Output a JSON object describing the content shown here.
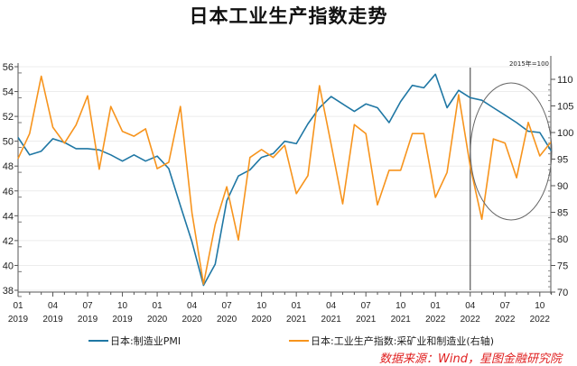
{
  "title": "日本工业生产指数走势",
  "source": "数据来源：Wind，星图金融研究院",
  "chart_data": {
    "type": "line",
    "title": "日本工业生产指数走势",
    "xlabel": "",
    "ylabel_left": "",
    "ylabel_right": "2015年=100",
    "left_axis": {
      "ylim": [
        38,
        56
      ],
      "ticks": [
        38,
        40,
        42,
        44,
        46,
        48,
        50,
        52,
        54,
        56
      ]
    },
    "right_axis": {
      "ylim": [
        70,
        110
      ],
      "ticks": [
        70,
        75,
        80,
        85,
        90,
        95,
        100,
        105,
        110
      ],
      "unit_label": "2015年=100"
    },
    "x_tick_labels": [
      {
        "m": "01",
        "y": "2019"
      },
      {
        "m": "04",
        "y": "2019"
      },
      {
        "m": "07",
        "y": "2019"
      },
      {
        "m": "10",
        "y": "2019"
      },
      {
        "m": "01",
        "y": "2020"
      },
      {
        "m": "04",
        "y": "2020"
      },
      {
        "m": "07",
        "y": "2020"
      },
      {
        "m": "10",
        "y": "2020"
      },
      {
        "m": "01",
        "y": "2021"
      },
      {
        "m": "04",
        "y": "2021"
      },
      {
        "m": "07",
        "y": "2021"
      },
      {
        "m": "10",
        "y": "2021"
      },
      {
        "m": "01",
        "y": "2022"
      },
      {
        "m": "04",
        "y": "2022"
      },
      {
        "m": "07",
        "y": "2022"
      },
      {
        "m": "10",
        "y": "2022"
      }
    ],
    "x": [
      "2019-01",
      "2019-02",
      "2019-03",
      "2019-04",
      "2019-05",
      "2019-06",
      "2019-07",
      "2019-08",
      "2019-09",
      "2019-10",
      "2019-11",
      "2019-12",
      "2020-01",
      "2020-02",
      "2020-03",
      "2020-04",
      "2020-05",
      "2020-06",
      "2020-07",
      "2020-08",
      "2020-09",
      "2020-10",
      "2020-11",
      "2020-12",
      "2021-01",
      "2021-02",
      "2021-03",
      "2021-04",
      "2021-05",
      "2021-06",
      "2021-07",
      "2021-08",
      "2021-09",
      "2021-10",
      "2021-11",
      "2021-12",
      "2022-01",
      "2022-02",
      "2022-03",
      "2022-04",
      "2022-05",
      "2022-06",
      "2022-07",
      "2022-08",
      "2022-09",
      "2022-10",
      "2022-11"
    ],
    "series": [
      {
        "name": "日本:制造业PMI",
        "axis": "left",
        "color": "#1f77a4",
        "values": [
          50.3,
          48.9,
          49.2,
          50.2,
          49.9,
          49.4,
          49.4,
          49.3,
          48.9,
          48.4,
          48.9,
          48.4,
          48.8,
          47.8,
          44.8,
          41.9,
          38.4,
          40.1,
          45.2,
          47.2,
          47.7,
          48.7,
          49.0,
          50.0,
          49.8,
          51.4,
          52.7,
          53.6,
          53.0,
          52.4,
          53.0,
          52.7,
          51.5,
          53.2,
          54.5,
          54.3,
          55.4,
          52.7,
          54.1,
          53.5,
          53.3,
          52.7,
          52.1,
          51.5,
          50.8,
          50.7,
          49.2
        ]
      },
      {
        "name": "日本:工业生产指数:采矿业和制造业(右轴)",
        "axis": "right",
        "color": "#f7941d",
        "values": [
          95.1,
          99.8,
          110.6,
          101.0,
          98.0,
          101.4,
          106.9,
          93.1,
          104.9,
          100.2,
          99.3,
          100.7,
          93.2,
          94.4,
          104.9,
          84.9,
          71.5,
          82.7,
          89.8,
          79.8,
          95.3,
          96.8,
          95.3,
          97.6,
          88.5,
          91.9,
          108.8,
          97.8,
          86.6,
          101.5,
          99.8,
          86.4,
          92.9,
          92.9,
          99.8,
          99.8,
          87.8,
          92.5,
          107.1,
          93.6,
          83.7,
          98.8,
          98.0,
          91.5,
          101.9,
          95.6,
          98.3
        ]
      }
    ],
    "annotations": [
      {
        "type": "vertical-line",
        "at": "2022-04"
      },
      {
        "type": "ellipse",
        "around": "2022-05 to 2022-11"
      }
    ],
    "legend_position": "bottom",
    "grid": true
  },
  "legend": {
    "items": [
      {
        "label": "日本:制造业PMI",
        "color": "#1f77a4"
      },
      {
        "label": "日本:工业生产指数:采矿业和制造业(右轴)",
        "color": "#f7941d"
      }
    ]
  },
  "axis_note": "2015年=100"
}
